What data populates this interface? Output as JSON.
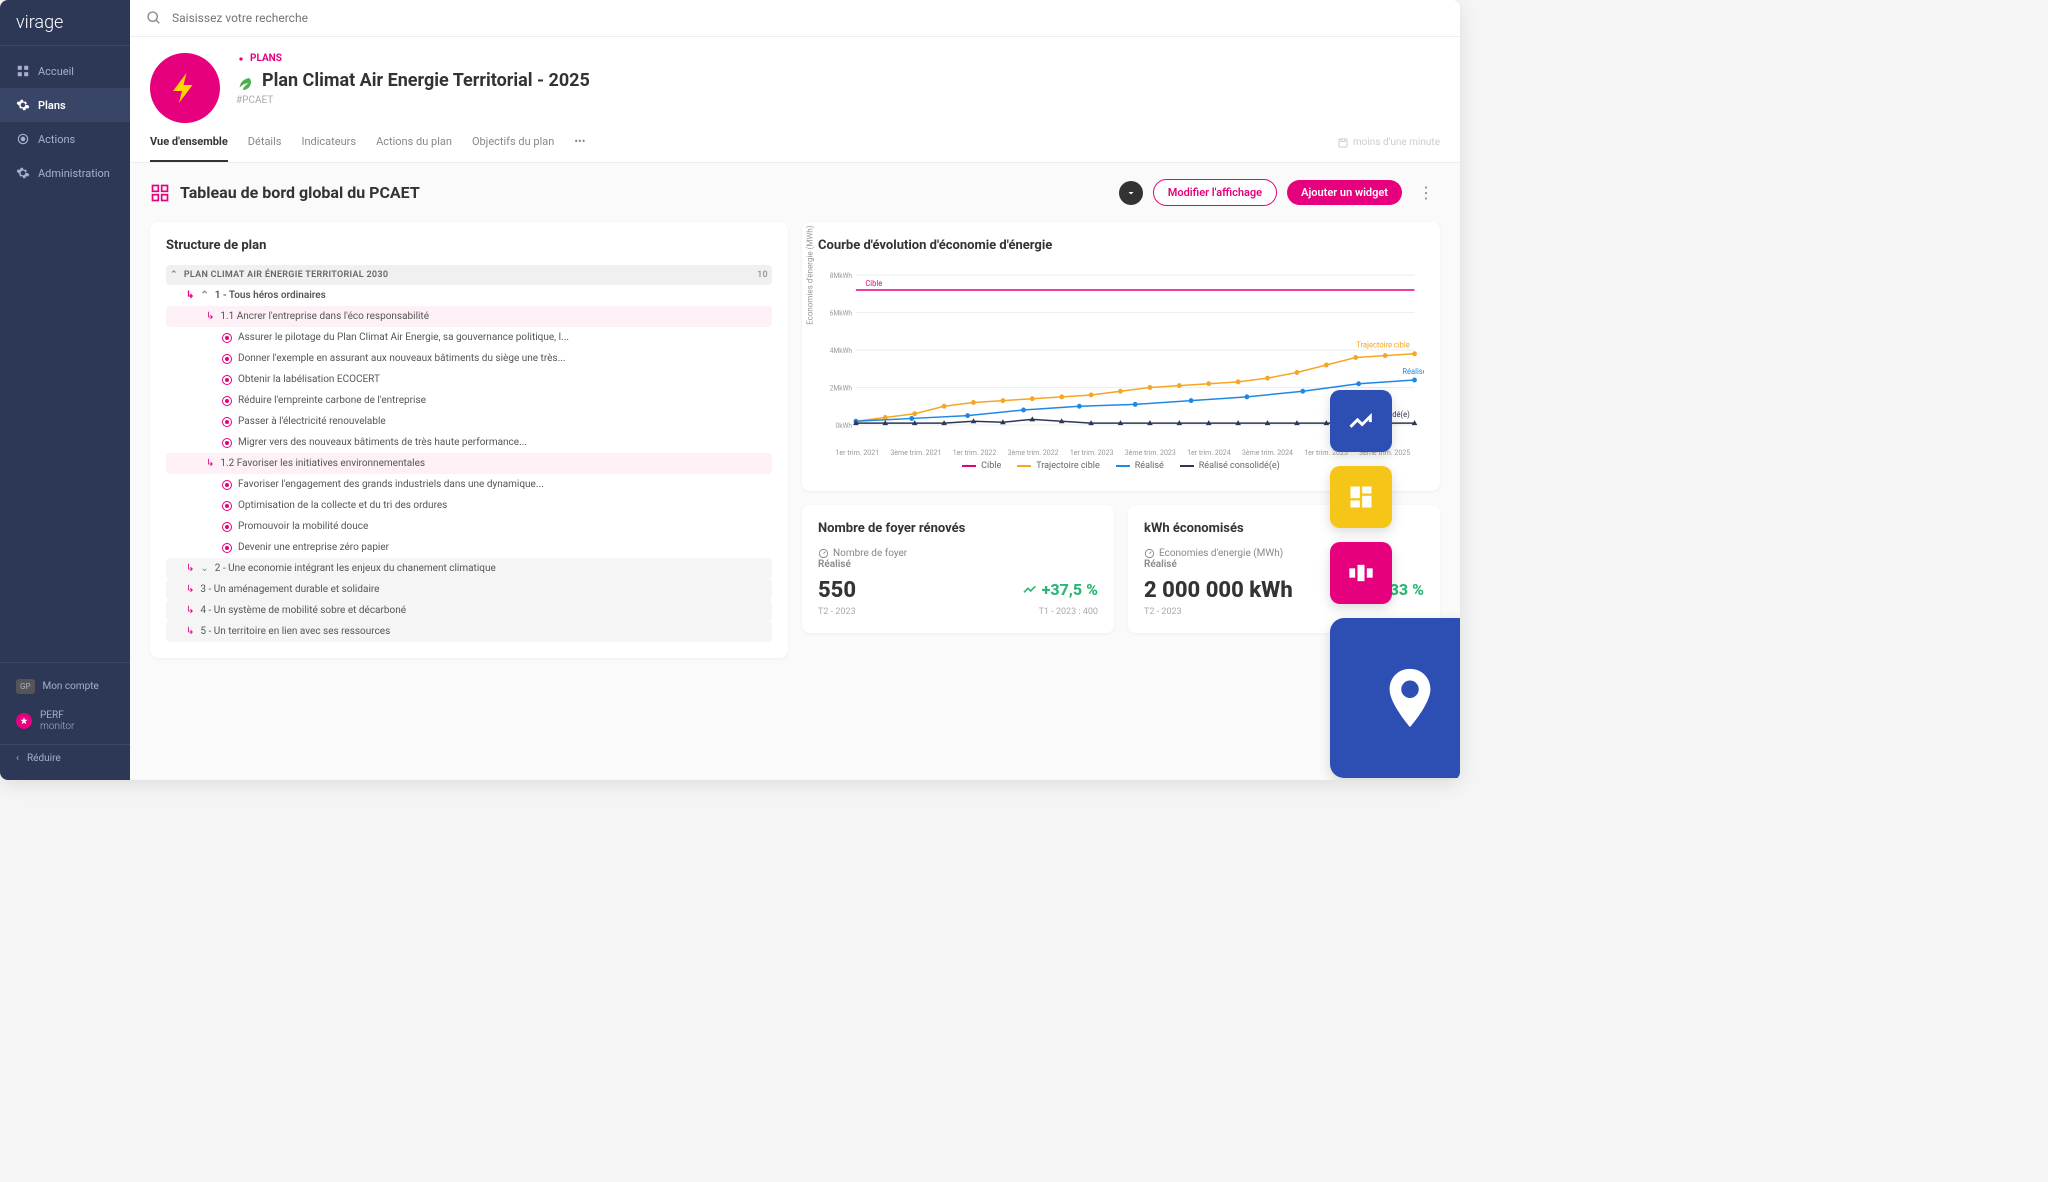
{
  "brand": {
    "name": "virage"
  },
  "sidebar": {
    "items": [
      {
        "label": "Accueil"
      },
      {
        "label": "Plans"
      },
      {
        "label": "Actions"
      },
      {
        "label": "Administration"
      }
    ],
    "account": {
      "initials": "GP",
      "label": "Mon compte"
    },
    "perf": {
      "label1": "PERF",
      "label2": "monitor"
    },
    "collapse": "Réduire"
  },
  "search": {
    "placeholder": "Saisissez votre recherche"
  },
  "header": {
    "crumb": "PLANS",
    "title": "Plan Climat Air Energie Territorial - 2025",
    "hash": "#PCAET"
  },
  "tabs": [
    {
      "label": "Vue d'ensemble",
      "active": true
    },
    {
      "label": "Détails"
    },
    {
      "label": "Indicateurs"
    },
    {
      "label": "Actions du plan"
    },
    {
      "label": "Objectifs du plan"
    }
  ],
  "timestamp": "moins d'une minute",
  "section": {
    "title": "Tableau de bord global du PCAET",
    "modify": "Modifier l'affichage",
    "add": "Ajouter un widget"
  },
  "structure": {
    "title": "Structure de plan",
    "root": "PLAN CLIMAT AIR ÉNERGIE TERRITORIAL 2030",
    "count": "10",
    "axis1": "1 - Tous héros ordinaires",
    "sub11": "1.1 Ancrer l'entreprise dans l'éco responsabilité",
    "items11": [
      "Assurer le pilotage du Plan Climat Air Energie, sa gouvernance politique, l...",
      "Donner l'exemple en assurant aux nouveaux bâtiments du siège une très...",
      "Obtenir la labélisation ECOCERT",
      "Réduire l'empreinte carbone de l'entreprise",
      "Passer à l'électricité renouvelable",
      "Migrer vers des nouveaux bâtiments de très haute performance..."
    ],
    "sub12": "1.2 Favoriser les initiatives environnementales",
    "items12": [
      "Favoriser l'engagement des grands industriels dans une dynamique...",
      "Optimisation de la collecte et du tri des ordures",
      "Promouvoir la mobilité douce",
      "Devenir une entreprise zéro papier"
    ],
    "axis2": "2 - Une economie intégrant les enjeux du chanement climatique",
    "axis3": "3 - Un aménagement durable et solidaire",
    "axis4": "4 - Un système de mobilité sobre et décarboné",
    "axis5": "5 - Un territoire en lien avec ses ressources"
  },
  "chart": {
    "title": "Courbe d'évolution d'économie d'énergie",
    "ylabel": "Economies d'énergie (MWh)",
    "yticks": [
      "0kWh",
      "2MkWh",
      "4MkWh",
      "6MkWh",
      "8MkWh"
    ],
    "xlabels": [
      "1er trim. 2021",
      "3ème trim. 2021",
      "1er trim. 2022",
      "3ème trim. 2022",
      "1er trim. 2023",
      "3ème trim. 2023",
      "1er trim. 2024",
      "3ème trim. 2024",
      "1er trim. 2025",
      "3ème trim. 2025"
    ],
    "legend": [
      {
        "label": "Cible",
        "color": "#e6007e",
        "type": "line"
      },
      {
        "label": "Trajectoire cible",
        "color": "#f5a623",
        "type": "line"
      },
      {
        "label": "Réalisé",
        "color": "#1e88e5",
        "type": "line"
      },
      {
        "label": "Réalisé consolidé(e)",
        "color": "#2d3856",
        "type": "line"
      }
    ],
    "colors": {
      "cible": "#e6007e",
      "traj": "#f5a623",
      "real": "#1e88e5",
      "cons": "#2d3856"
    },
    "annotations": {
      "cible": "Cible",
      "traj": "Trajectoire cible",
      "real": "Réalisé",
      "cons": "Réalisé consolidé(e)"
    },
    "ylim": [
      0,
      8
    ],
    "cible_y": 7.2,
    "traj": [
      0.2,
      0.4,
      0.6,
      1.0,
      1.2,
      1.3,
      1.4,
      1.5,
      1.6,
      1.8,
      2.0,
      2.1,
      2.2,
      2.3,
      2.5,
      2.8,
      3.2,
      3.6,
      3.7,
      3.8
    ],
    "real": [
      0.2,
      0.35,
      0.5,
      0.8,
      1.0,
      1.1,
      1.3,
      1.5,
      1.8,
      2.2,
      2.4
    ],
    "cons": [
      0.1,
      0.1,
      0.1,
      0.1,
      0.2,
      0.15,
      0.3,
      0.2,
      0.1,
      0.1,
      0.1,
      0.1,
      0.1,
      0.1,
      0.1,
      0.1,
      0.1,
      0.1,
      0.1,
      0.1
    ]
  },
  "kpi1": {
    "title": "Nombre de foyer rénovés",
    "metric": "Nombre de foyer",
    "label": "Réalisé",
    "value": "550",
    "pct": "+37,5 %",
    "period": "T2 - 2023",
    "ref": "T1 - 2023 : 400"
  },
  "kpi2": {
    "title": "kWh économisés",
    "metric": "Economies d'energie (MWh)",
    "label": "Réalisé",
    "value": "2 000 000 kWh",
    "pct": "+33,33 %",
    "period": "T2 - 2023",
    "ref": ""
  },
  "tiles": {
    "c1": "#2d4fb3",
    "c2": "#f5c518",
    "c3": "#e6007e",
    "c4": "#2d4fb3"
  }
}
